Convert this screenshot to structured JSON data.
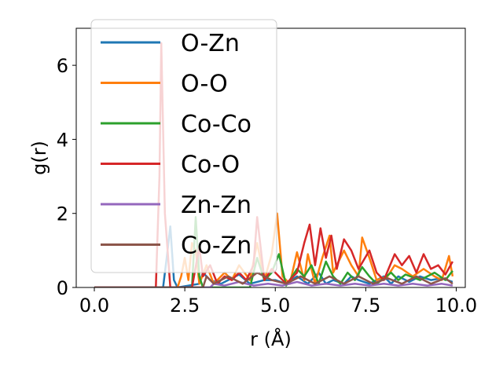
{
  "chart_data": {
    "type": "line",
    "title": "",
    "xlabel": "r (Å)",
    "ylabel": "g(r)",
    "xlim": [
      -0.5,
      10.25
    ],
    "ylim": [
      0,
      7
    ],
    "xticks": [
      "0.0",
      "2.5",
      "5.0",
      "7.5",
      "10.0"
    ],
    "xtick_values": [
      0,
      2.5,
      5,
      7.5,
      10
    ],
    "yticks": [
      "0",
      "2",
      "4",
      "6"
    ],
    "ytick_values": [
      0,
      2,
      4,
      6
    ],
    "legend_position": "upper-left",
    "series": [
      {
        "name": "O-Zn",
        "color": "#1f77b4",
        "points": [
          [
            0,
            0
          ],
          [
            1.9,
            0
          ],
          [
            2.0,
            0.8
          ],
          [
            2.1,
            1.65
          ],
          [
            2.2,
            0.2
          ],
          [
            2.3,
            0
          ],
          [
            2.9,
            0.1
          ],
          [
            3.0,
            0.4
          ],
          [
            3.2,
            0.2
          ],
          [
            3.5,
            0.1
          ],
          [
            4.0,
            0.35
          ],
          [
            4.3,
            0.1
          ],
          [
            4.7,
            0.2
          ],
          [
            5.0,
            0.2
          ],
          [
            5.3,
            0.1
          ],
          [
            5.6,
            0.3
          ],
          [
            5.9,
            0.1
          ],
          [
            6.2,
            0.4
          ],
          [
            6.4,
            0.1
          ],
          [
            6.6,
            0.2
          ],
          [
            6.9,
            0.1
          ],
          [
            7.1,
            0.3
          ],
          [
            7.3,
            0.2
          ],
          [
            7.6,
            0.1
          ],
          [
            8.0,
            0.3
          ],
          [
            8.2,
            0.1
          ],
          [
            8.4,
            0.3
          ],
          [
            8.7,
            0.15
          ],
          [
            9.0,
            0.3
          ],
          [
            9.3,
            0.2
          ],
          [
            9.6,
            0.25
          ],
          [
            9.9,
            0.15
          ]
        ]
      },
      {
        "name": "O-O",
        "color": "#ff7f0e",
        "points": [
          [
            0,
            0
          ],
          [
            2.3,
            0
          ],
          [
            2.4,
            0.3
          ],
          [
            2.5,
            0.8
          ],
          [
            2.6,
            0.2
          ],
          [
            2.7,
            1.2
          ],
          [
            2.8,
            1.0
          ],
          [
            2.9,
            0.1
          ],
          [
            3.1,
            0.6
          ],
          [
            3.3,
            0.1
          ],
          [
            3.6,
            0.4
          ],
          [
            3.8,
            0.2
          ],
          [
            4.0,
            0.6
          ],
          [
            4.3,
            0.2
          ],
          [
            4.5,
            1.2
          ],
          [
            4.7,
            0.2
          ],
          [
            4.9,
            0.9
          ],
          [
            5.05,
            2.0
          ],
          [
            5.2,
            0.3
          ],
          [
            5.4,
            0.1
          ],
          [
            5.6,
            0.95
          ],
          [
            5.8,
            0.2
          ],
          [
            5.9,
            0.9
          ],
          [
            6.1,
            0.1
          ],
          [
            6.3,
            0.8
          ],
          [
            6.5,
            1.4
          ],
          [
            6.6,
            0.4
          ],
          [
            6.9,
            1.0
          ],
          [
            7.1,
            0.6
          ],
          [
            7.3,
            0.3
          ],
          [
            7.4,
            1.35
          ],
          [
            7.6,
            0.8
          ],
          [
            7.8,
            0.2
          ],
          [
            8.1,
            0.3
          ],
          [
            8.3,
            0.6
          ],
          [
            8.5,
            0.5
          ],
          [
            8.8,
            0.3
          ],
          [
            9.1,
            0.5
          ],
          [
            9.4,
            0.3
          ],
          [
            9.6,
            0.2
          ],
          [
            9.8,
            0.85
          ],
          [
            9.9,
            0.3
          ]
        ]
      },
      {
        "name": "Co-Co",
        "color": "#2ca02c",
        "points": [
          [
            0,
            0
          ],
          [
            2.7,
            0
          ],
          [
            2.8,
            1.9
          ],
          [
            2.9,
            0.3
          ],
          [
            3.0,
            0
          ],
          [
            4.3,
            0
          ],
          [
            4.5,
            0.8
          ],
          [
            4.7,
            0.2
          ],
          [
            4.9,
            0.4
          ],
          [
            5.1,
            0.9
          ],
          [
            5.3,
            0.05
          ],
          [
            5.6,
            0.5
          ],
          [
            5.8,
            0.3
          ],
          [
            6.0,
            0.6
          ],
          [
            6.2,
            0.1
          ],
          [
            6.4,
            0.7
          ],
          [
            6.6,
            0.3
          ],
          [
            6.8,
            0.1
          ],
          [
            7.0,
            0.4
          ],
          [
            7.2,
            0.2
          ],
          [
            7.4,
            0.55
          ],
          [
            7.6,
            0.3
          ],
          [
            7.8,
            0.1
          ],
          [
            8.2,
            0.4
          ],
          [
            8.4,
            0.2
          ],
          [
            8.6,
            0.35
          ],
          [
            9.0,
            0.2
          ],
          [
            9.4,
            0.4
          ],
          [
            9.7,
            0.2
          ],
          [
            9.9,
            0.45
          ]
        ]
      },
      {
        "name": "Co-O",
        "color": "#d62728",
        "points": [
          [
            0,
            0
          ],
          [
            1.7,
            0
          ],
          [
            1.8,
            3.0
          ],
          [
            1.85,
            6.6
          ],
          [
            1.95,
            2.0
          ],
          [
            2.1,
            0
          ],
          [
            2.7,
            0
          ],
          [
            2.9,
            1.1
          ],
          [
            3.0,
            0.3
          ],
          [
            3.2,
            0.6
          ],
          [
            3.4,
            0.1
          ],
          [
            3.6,
            0.3
          ],
          [
            3.8,
            0.2
          ],
          [
            4.0,
            0.4
          ],
          [
            4.2,
            0.2
          ],
          [
            4.4,
            0.6
          ],
          [
            4.5,
            1.9
          ],
          [
            4.7,
            0.2
          ],
          [
            4.9,
            0.5
          ],
          [
            5.1,
            0.3
          ],
          [
            5.3,
            0.1
          ],
          [
            5.6,
            0.4
          ],
          [
            5.8,
            1.2
          ],
          [
            5.95,
            1.7
          ],
          [
            6.1,
            0.6
          ],
          [
            6.25,
            1.6
          ],
          [
            6.4,
            0.8
          ],
          [
            6.55,
            1.4
          ],
          [
            6.7,
            0.5
          ],
          [
            6.9,
            1.3
          ],
          [
            7.1,
            1.0
          ],
          [
            7.3,
            0.5
          ],
          [
            7.6,
            1.0
          ],
          [
            7.8,
            0.4
          ],
          [
            8.0,
            0.2
          ],
          [
            8.3,
            0.9
          ],
          [
            8.5,
            0.6
          ],
          [
            8.7,
            0.85
          ],
          [
            8.9,
            0.4
          ],
          [
            9.1,
            0.9
          ],
          [
            9.3,
            0.5
          ],
          [
            9.5,
            0.6
          ],
          [
            9.7,
            0.35
          ],
          [
            9.9,
            0.7
          ]
        ]
      },
      {
        "name": "Zn-Zn",
        "color": "#9467bd",
        "points": [
          [
            0,
            0
          ],
          [
            3.2,
            0
          ],
          [
            3.3,
            0.1
          ],
          [
            3.6,
            0.05
          ],
          [
            4.0,
            0.15
          ],
          [
            4.4,
            0.05
          ],
          [
            4.8,
            0.1
          ],
          [
            5.2,
            0.05
          ],
          [
            5.6,
            0.15
          ],
          [
            6.0,
            0.05
          ],
          [
            6.4,
            0.1
          ],
          [
            6.8,
            0.05
          ],
          [
            7.2,
            0.1
          ],
          [
            7.6,
            0.05
          ],
          [
            8.0,
            0.1
          ],
          [
            8.4,
            0.05
          ],
          [
            8.8,
            0.1
          ],
          [
            9.2,
            0.05
          ],
          [
            9.6,
            0.1
          ],
          [
            9.9,
            0.05
          ]
        ]
      },
      {
        "name": "Co-Zn",
        "color": "#8c564b",
        "points": [
          [
            0,
            0
          ],
          [
            3.0,
            0
          ],
          [
            3.1,
            0.3
          ],
          [
            3.3,
            0.1
          ],
          [
            3.7,
            0.3
          ],
          [
            4.1,
            0.1
          ],
          [
            4.5,
            0.4
          ],
          [
            4.9,
            0.2
          ],
          [
            5.3,
            0.1
          ],
          [
            5.7,
            0.3
          ],
          [
            6.1,
            0.1
          ],
          [
            6.5,
            0.3
          ],
          [
            6.9,
            0.1
          ],
          [
            7.3,
            0.3
          ],
          [
            7.7,
            0.1
          ],
          [
            8.1,
            0.25
          ],
          [
            8.5,
            0.1
          ],
          [
            8.9,
            0.3
          ],
          [
            9.3,
            0.1
          ],
          [
            9.7,
            0.25
          ],
          [
            9.9,
            0.1
          ]
        ]
      }
    ]
  }
}
